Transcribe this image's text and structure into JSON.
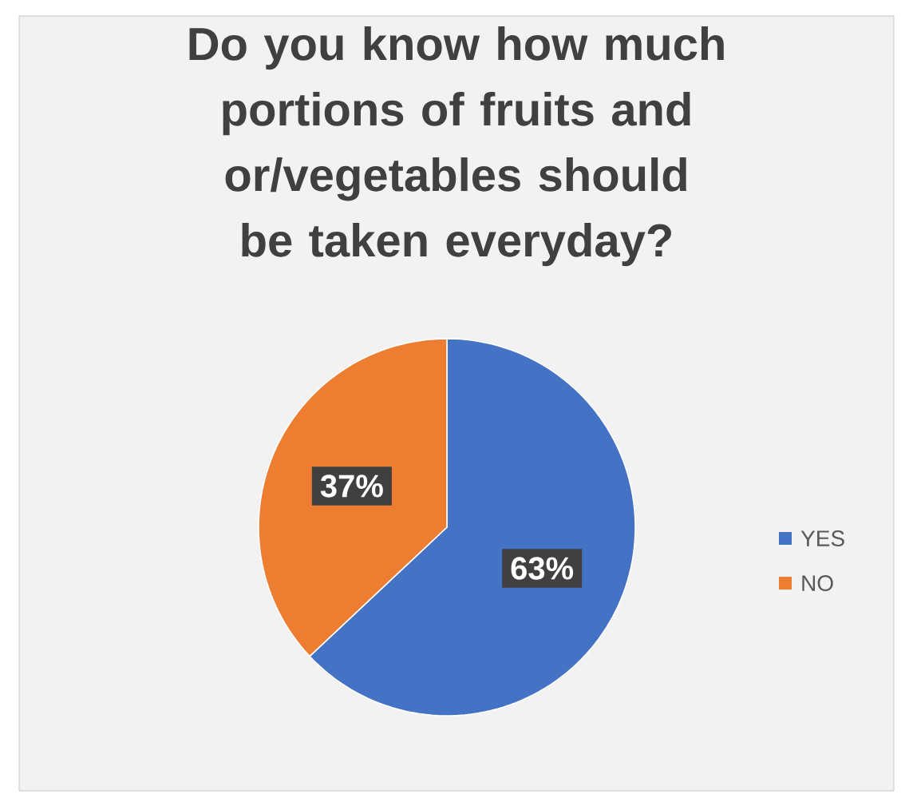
{
  "chart_data": {
    "type": "pie",
    "title": "Do you know how much portions of fruits and or/vegetables should be taken everyday?",
    "categories": [
      "YES",
      "NO"
    ],
    "values": [
      63,
      37
    ],
    "colors": [
      "#4472c4",
      "#ed7d31"
    ],
    "value_labels": [
      "63%",
      "37%"
    ],
    "legend": "right"
  }
}
